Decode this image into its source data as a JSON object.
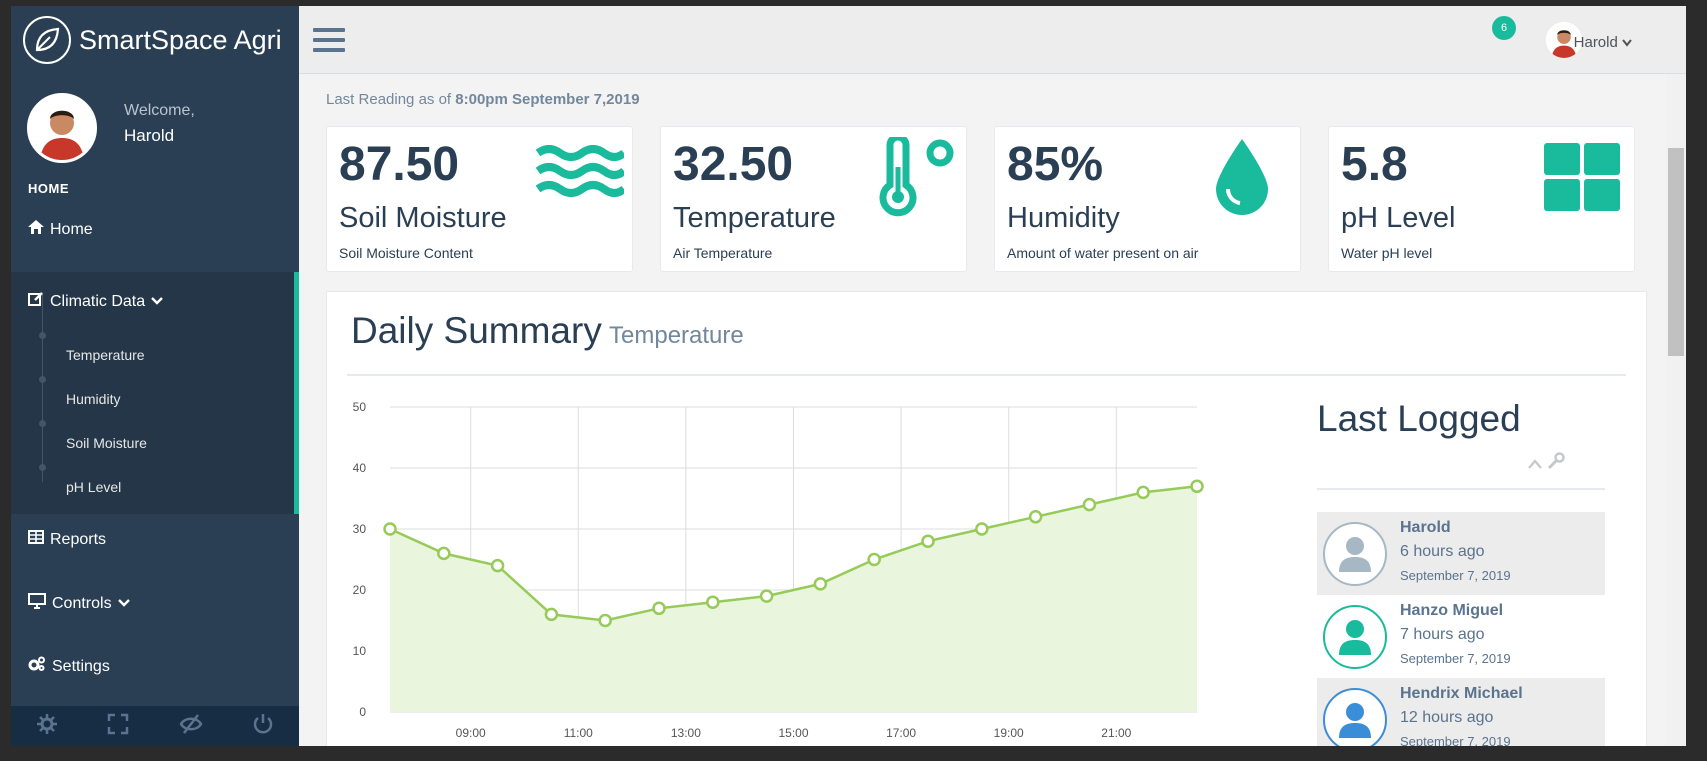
{
  "app": {
    "brand": "SmartSpace Agri",
    "welcome": "Welcome,",
    "user": "Harold"
  },
  "sidebar": {
    "section": "HOME",
    "items": [
      {
        "label": "Home",
        "icon": "home-icon"
      },
      {
        "label": "Climatic Data",
        "icon": "edit-icon"
      },
      {
        "label": "Reports",
        "icon": "table-icon"
      },
      {
        "label": "Controls",
        "icon": "desktop-icon"
      },
      {
        "label": "Settings",
        "icon": "cogs-icon"
      }
    ],
    "submenu": [
      "Temperature",
      "Humidity",
      "Soil Moisture",
      "pH Level"
    ]
  },
  "topnav": {
    "badge": "6",
    "user": "Harold"
  },
  "reading": {
    "prefix": "Last Reading as of",
    "time": "8:00pm",
    "date": "September 7,2019"
  },
  "tiles": [
    {
      "value": "87.50",
      "label": "Soil Moisture",
      "sub": "Soil Moisture Content",
      "icon": "waves-icon"
    },
    {
      "value": "32.50",
      "label": "Temperature",
      "sub": "Air Temperature",
      "icon": "thermometer-icon"
    },
    {
      "value": "85%",
      "label": "Humidity",
      "sub": "Amount of water present on air",
      "icon": "water-drop-icon"
    },
    {
      "value": "5.8",
      "label": "pH Level",
      "sub": "Water pH level",
      "icon": "grid-icon"
    }
  ],
  "summary": {
    "title": "Daily Summary",
    "subtitle": "Temperature"
  },
  "chart_data": {
    "type": "area",
    "x": [
      "07:30",
      "08:30",
      "09:30",
      "10:30",
      "11:30",
      "12:30",
      "13:30",
      "14:30",
      "15:30",
      "16:30",
      "17:30",
      "18:30",
      "19:30",
      "20:30",
      "21:30",
      "22:30"
    ],
    "x_ticks": [
      "09:00",
      "11:00",
      "13:00",
      "15:00",
      "17:00",
      "19:00",
      "21:00"
    ],
    "values": [
      30,
      26,
      24,
      16,
      15,
      17,
      18,
      19,
      21,
      25,
      28,
      30,
      32,
      34,
      36,
      37
    ],
    "ylim": [
      0,
      50
    ],
    "y_ticks": [
      0,
      10,
      20,
      30,
      40,
      50
    ],
    "grid": true,
    "colors": {
      "line": "#96ca59",
      "fill": "#e9f5dc"
    }
  },
  "last_logged": {
    "title": "Last Logged",
    "entries": [
      {
        "name": "Harold",
        "ago": "6 hours ago",
        "date": "September 7, 2019",
        "color": "#a6b8c4"
      },
      {
        "name": "Hanzo Miguel",
        "ago": "7 hours ago",
        "date": "September 7, 2019",
        "color": "#1abb9c"
      },
      {
        "name": "Hendrix Michael",
        "ago": "12 hours ago",
        "date": "September 7, 2019",
        "color": "#3a8ed8"
      }
    ]
  },
  "colors": {
    "accent": "#1abb9c",
    "sidebar": "#2a3f54",
    "text": "#2a3f54"
  }
}
